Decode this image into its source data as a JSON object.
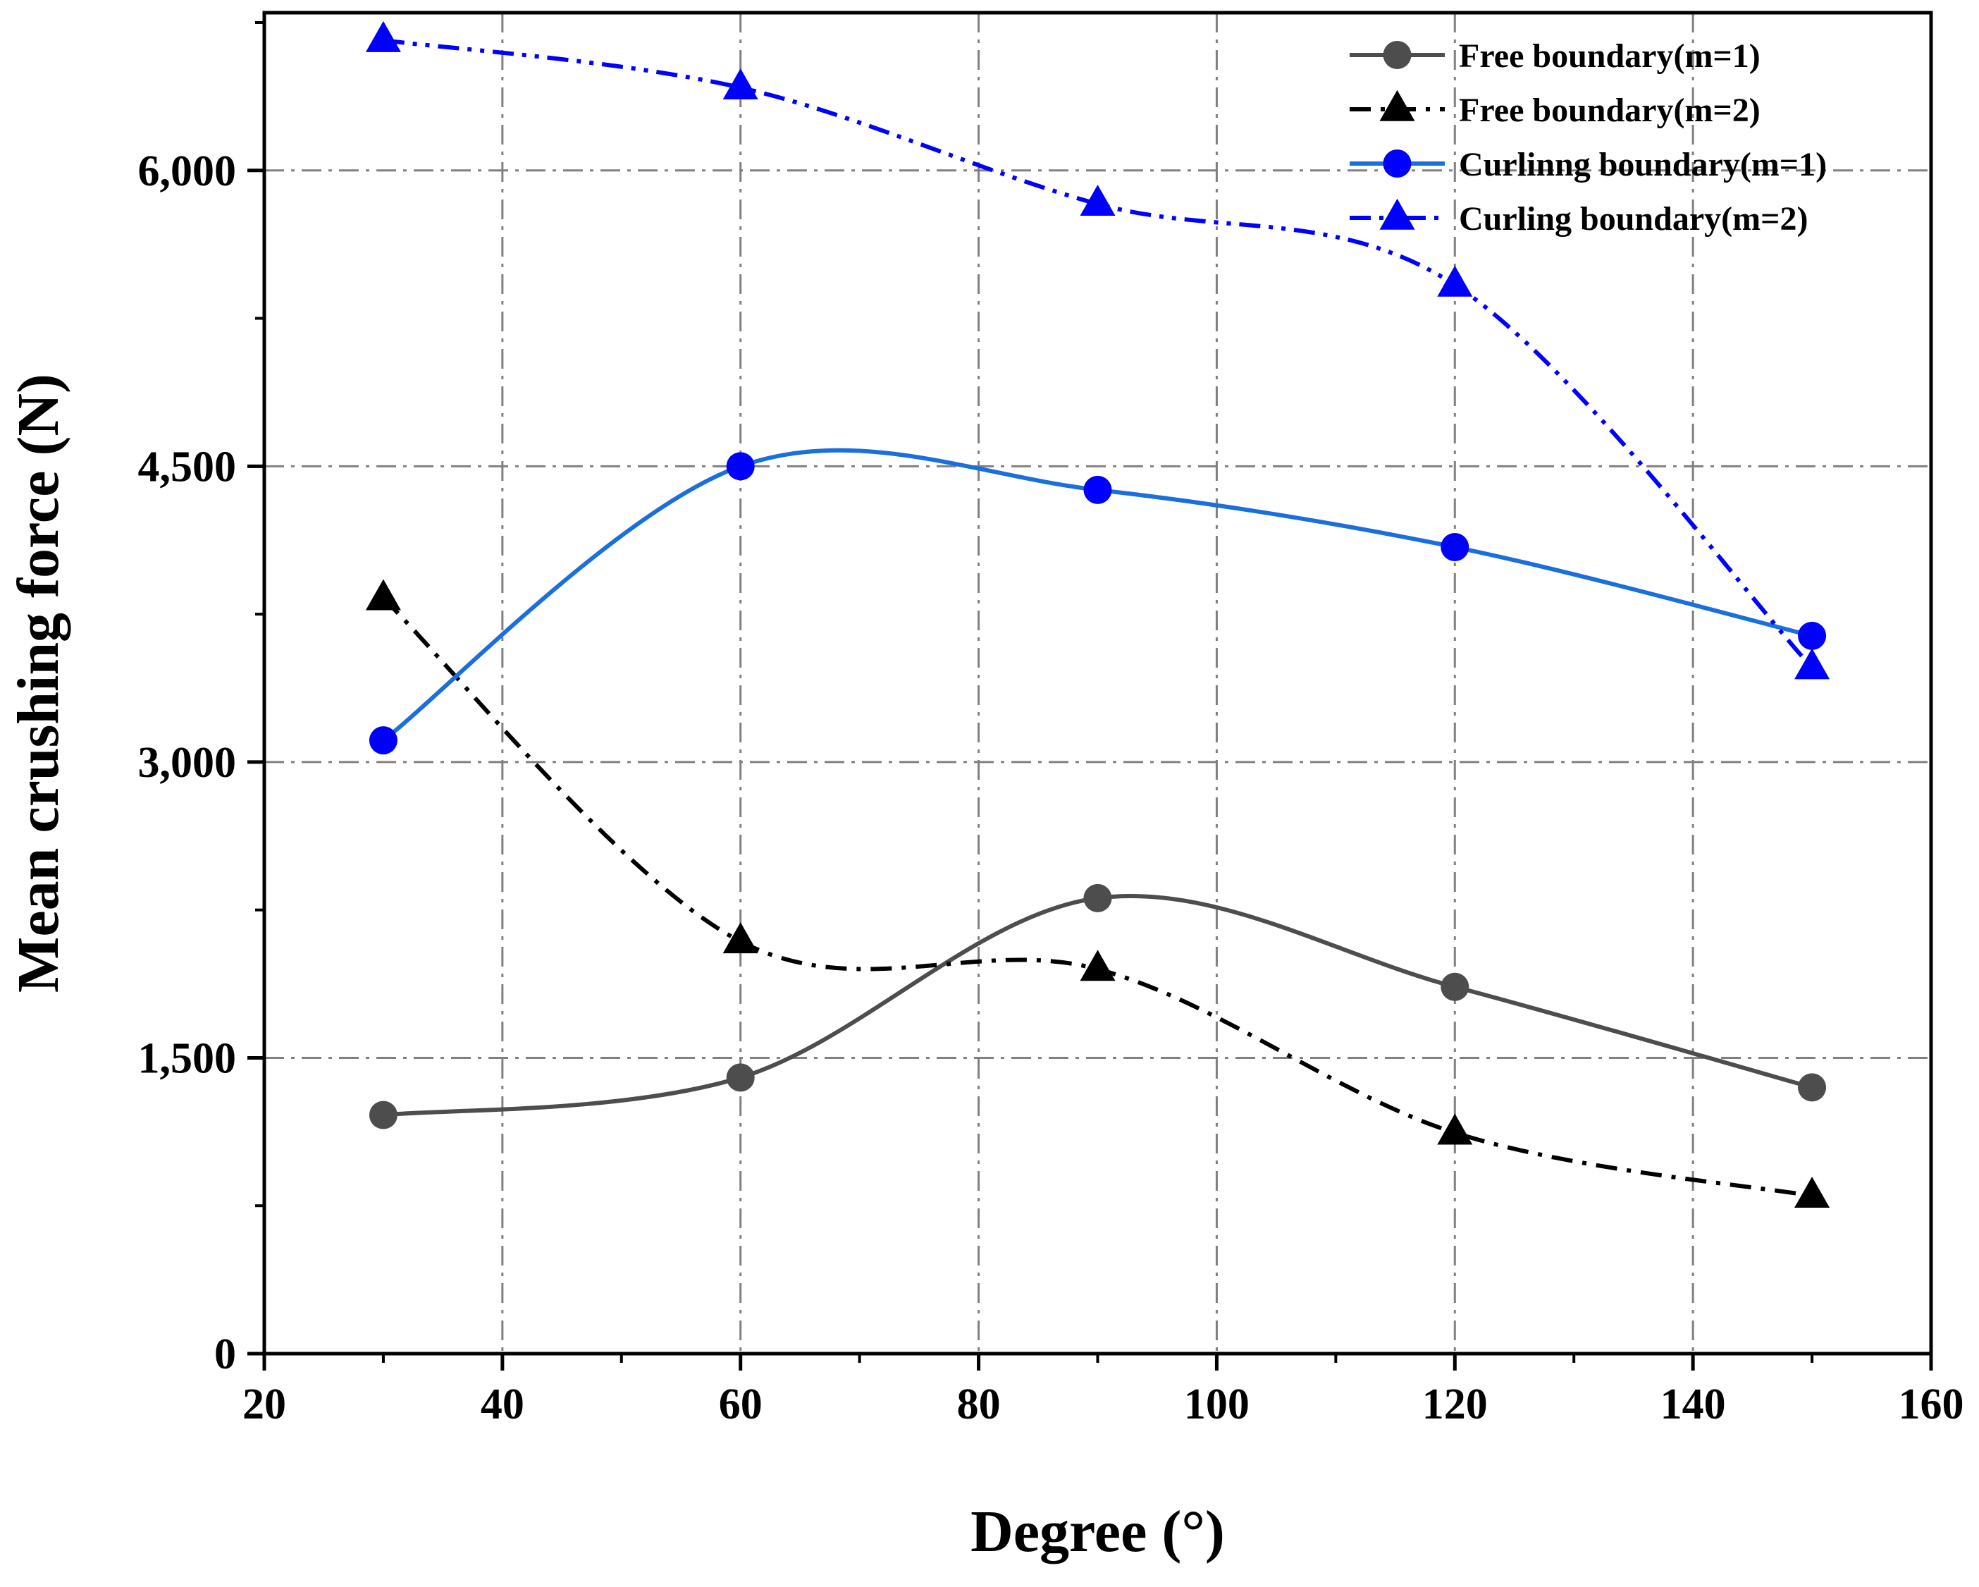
{
  "chart_data": {
    "type": "line",
    "title": "",
    "xlabel": "Degree (°)",
    "ylabel": "Mean crushing force (N)",
    "xlim": [
      20,
      160
    ],
    "ylim": [
      0,
      6800
    ],
    "xticks": [
      20,
      40,
      60,
      80,
      100,
      120,
      140,
      160
    ],
    "xtick_labels": [
      "20",
      "40",
      "60",
      "80",
      "100",
      "120",
      "140",
      "160"
    ],
    "yticks": [
      0,
      1500,
      3000,
      4500,
      6000
    ],
    "ytick_labels": [
      "0",
      "1,500",
      "3,000",
      "4,500",
      "6,000"
    ],
    "grid": true,
    "legend_position": "top-right",
    "x": [
      30,
      60,
      90,
      120,
      150
    ],
    "series": [
      {
        "name": "Free boundary(m=1)",
        "values": [
          1210,
          1400,
          2310,
          1860,
          1350
        ],
        "color": "#4d4d4d",
        "marker": "circle",
        "dash": "solid"
      },
      {
        "name": "Free boundary(m=2)",
        "values": [
          3830,
          2090,
          1950,
          1120,
          800
        ],
        "color": "#000000",
        "marker": "triangle",
        "dash": "dashdot"
      },
      {
        "name": "Curlinng boundary(m=1)",
        "values": [
          3110,
          4500,
          4380,
          4090,
          3640
        ],
        "color": "#1a6fdc",
        "marker": "circle",
        "dash": "solid",
        "marker_color": "#0000ff"
      },
      {
        "name": "Curling boundary(m=2)",
        "values": [
          6660,
          6420,
          5830,
          5420,
          3480
        ],
        "color": "#0000ff",
        "marker": "triangle",
        "dash": "dashdotdot"
      }
    ]
  }
}
